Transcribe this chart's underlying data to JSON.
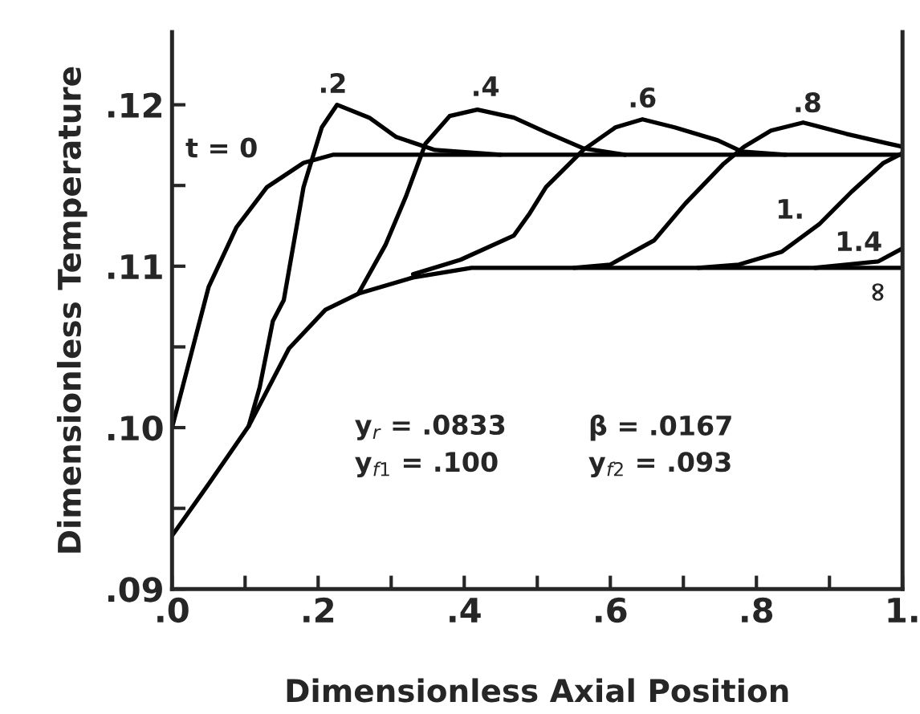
{
  "chart_data": {
    "type": "line",
    "xlabel": "Dimensionless Axial Position",
    "ylabel": "Dimensionless Temperature",
    "xlim": [
      0,
      1
    ],
    "ylim": [
      0.09,
      0.1245
    ],
    "xticks": [
      {
        "value": 0,
        "label": ".0"
      },
      {
        "value": 0.1,
        "label": null
      },
      {
        "value": 0.2,
        "label": ".2"
      },
      {
        "value": 0.3,
        "label": null
      },
      {
        "value": 0.4,
        "label": ".4"
      },
      {
        "value": 0.5,
        "label": null
      },
      {
        "value": 0.6,
        "label": ".6"
      },
      {
        "value": 0.7,
        "label": null
      },
      {
        "value": 0.8,
        "label": ".8"
      },
      {
        "value": 0.9,
        "label": null
      },
      {
        "value": 1,
        "label": "1."
      }
    ],
    "yticks": [
      {
        "value": 0.09,
        "label": ".09"
      },
      {
        "value": 0.095,
        "label": null
      },
      {
        "value": 0.1,
        "label": ".10"
      },
      {
        "value": 0.105,
        "label": null
      },
      {
        "value": 0.11,
        "label": ".11"
      },
      {
        "value": 0.115,
        "label": null
      },
      {
        "value": 0.12,
        "label": ".12"
      }
    ],
    "grid": false,
    "legend": false,
    "marker": "none",
    "line_style": "solid",
    "series": [
      {
        "color": "#000000",
        "x": [
          0,
          0.05,
          0.088,
          0.13,
          0.18,
          0.22,
          0.3,
          1.0
        ],
        "values": [
          0.1,
          0.1087,
          0.1124,
          0.1149,
          0.1164,
          0.1169,
          0.1169,
          0.1169
        ]
      },
      {
        "color": "#000000",
        "x": [
          0.105,
          0.12,
          0.138,
          0.153,
          0.18,
          0.205,
          0.226,
          0.27,
          0.307,
          0.36,
          0.45
        ],
        "values": [
          0.1001,
          0.1025,
          0.1066,
          0.1079,
          0.1149,
          0.1186,
          0.12,
          0.1192,
          0.118,
          0.1172,
          0.1169
        ]
      },
      {
        "color": "#000000",
        "x": [
          0.255,
          0.292,
          0.32,
          0.347,
          0.38,
          0.418,
          0.468,
          0.512,
          0.563,
          0.62
        ],
        "values": [
          0.1083,
          0.1113,
          0.1143,
          0.1176,
          0.1193,
          0.1197,
          0.1192,
          0.1183,
          0.1173,
          0.1169
        ]
      },
      {
        "color": "#000000",
        "x": [
          0.33,
          0.395,
          0.468,
          0.49,
          0.512,
          0.563,
          0.607,
          0.644,
          0.688,
          0.747,
          0.78,
          0.84
        ],
        "values": [
          0.1095,
          0.1104,
          0.1119,
          0.1133,
          0.1149,
          0.1172,
          0.1186,
          0.1191,
          0.1186,
          0.1178,
          0.1171,
          0.1169
        ]
      },
      {
        "color": "#000000",
        "x": [
          0.55,
          0.6,
          0.66,
          0.703,
          0.754,
          0.783,
          0.82,
          0.864,
          0.923,
          0.98,
          1.0
        ],
        "values": [
          0.1099,
          0.1101,
          0.1116,
          0.1139,
          0.1163,
          0.1174,
          0.1184,
          0.1189,
          0.1182,
          0.1176,
          0.1174
        ]
      },
      {
        "color": "#000000",
        "x": [
          0.72,
          0.776,
          0.835,
          0.886,
          0.93,
          0.974,
          1.0
        ],
        "values": [
          0.1099,
          0.1101,
          0.1109,
          0.1126,
          0.1146,
          0.1164,
          0.117
        ]
      },
      {
        "color": "#000000",
        "x": [
          0.88,
          0.923,
          0.967,
          1.0
        ],
        "values": [
          0.1099,
          0.1101,
          0.1103,
          0.1111
        ]
      },
      {
        "color": "#000000",
        "x": [
          0,
          0.05,
          0.105,
          0.16,
          0.21,
          0.255,
          0.33,
          0.41,
          1.0
        ],
        "values": [
          0.0933,
          0.0965,
          0.1001,
          0.1049,
          0.1073,
          0.1083,
          0.1093,
          0.1099,
          0.1099
        ]
      }
    ],
    "annotations": [
      "t = 0",
      ".2",
      ".4",
      ".6",
      ".8",
      "1.",
      "1.4",
      "∞",
      "y$_{r}$ = .0833",
      "β = .0167",
      "y$_{f1}$ = .100",
      "y$_{f2}$ = .093"
    ]
  }
}
